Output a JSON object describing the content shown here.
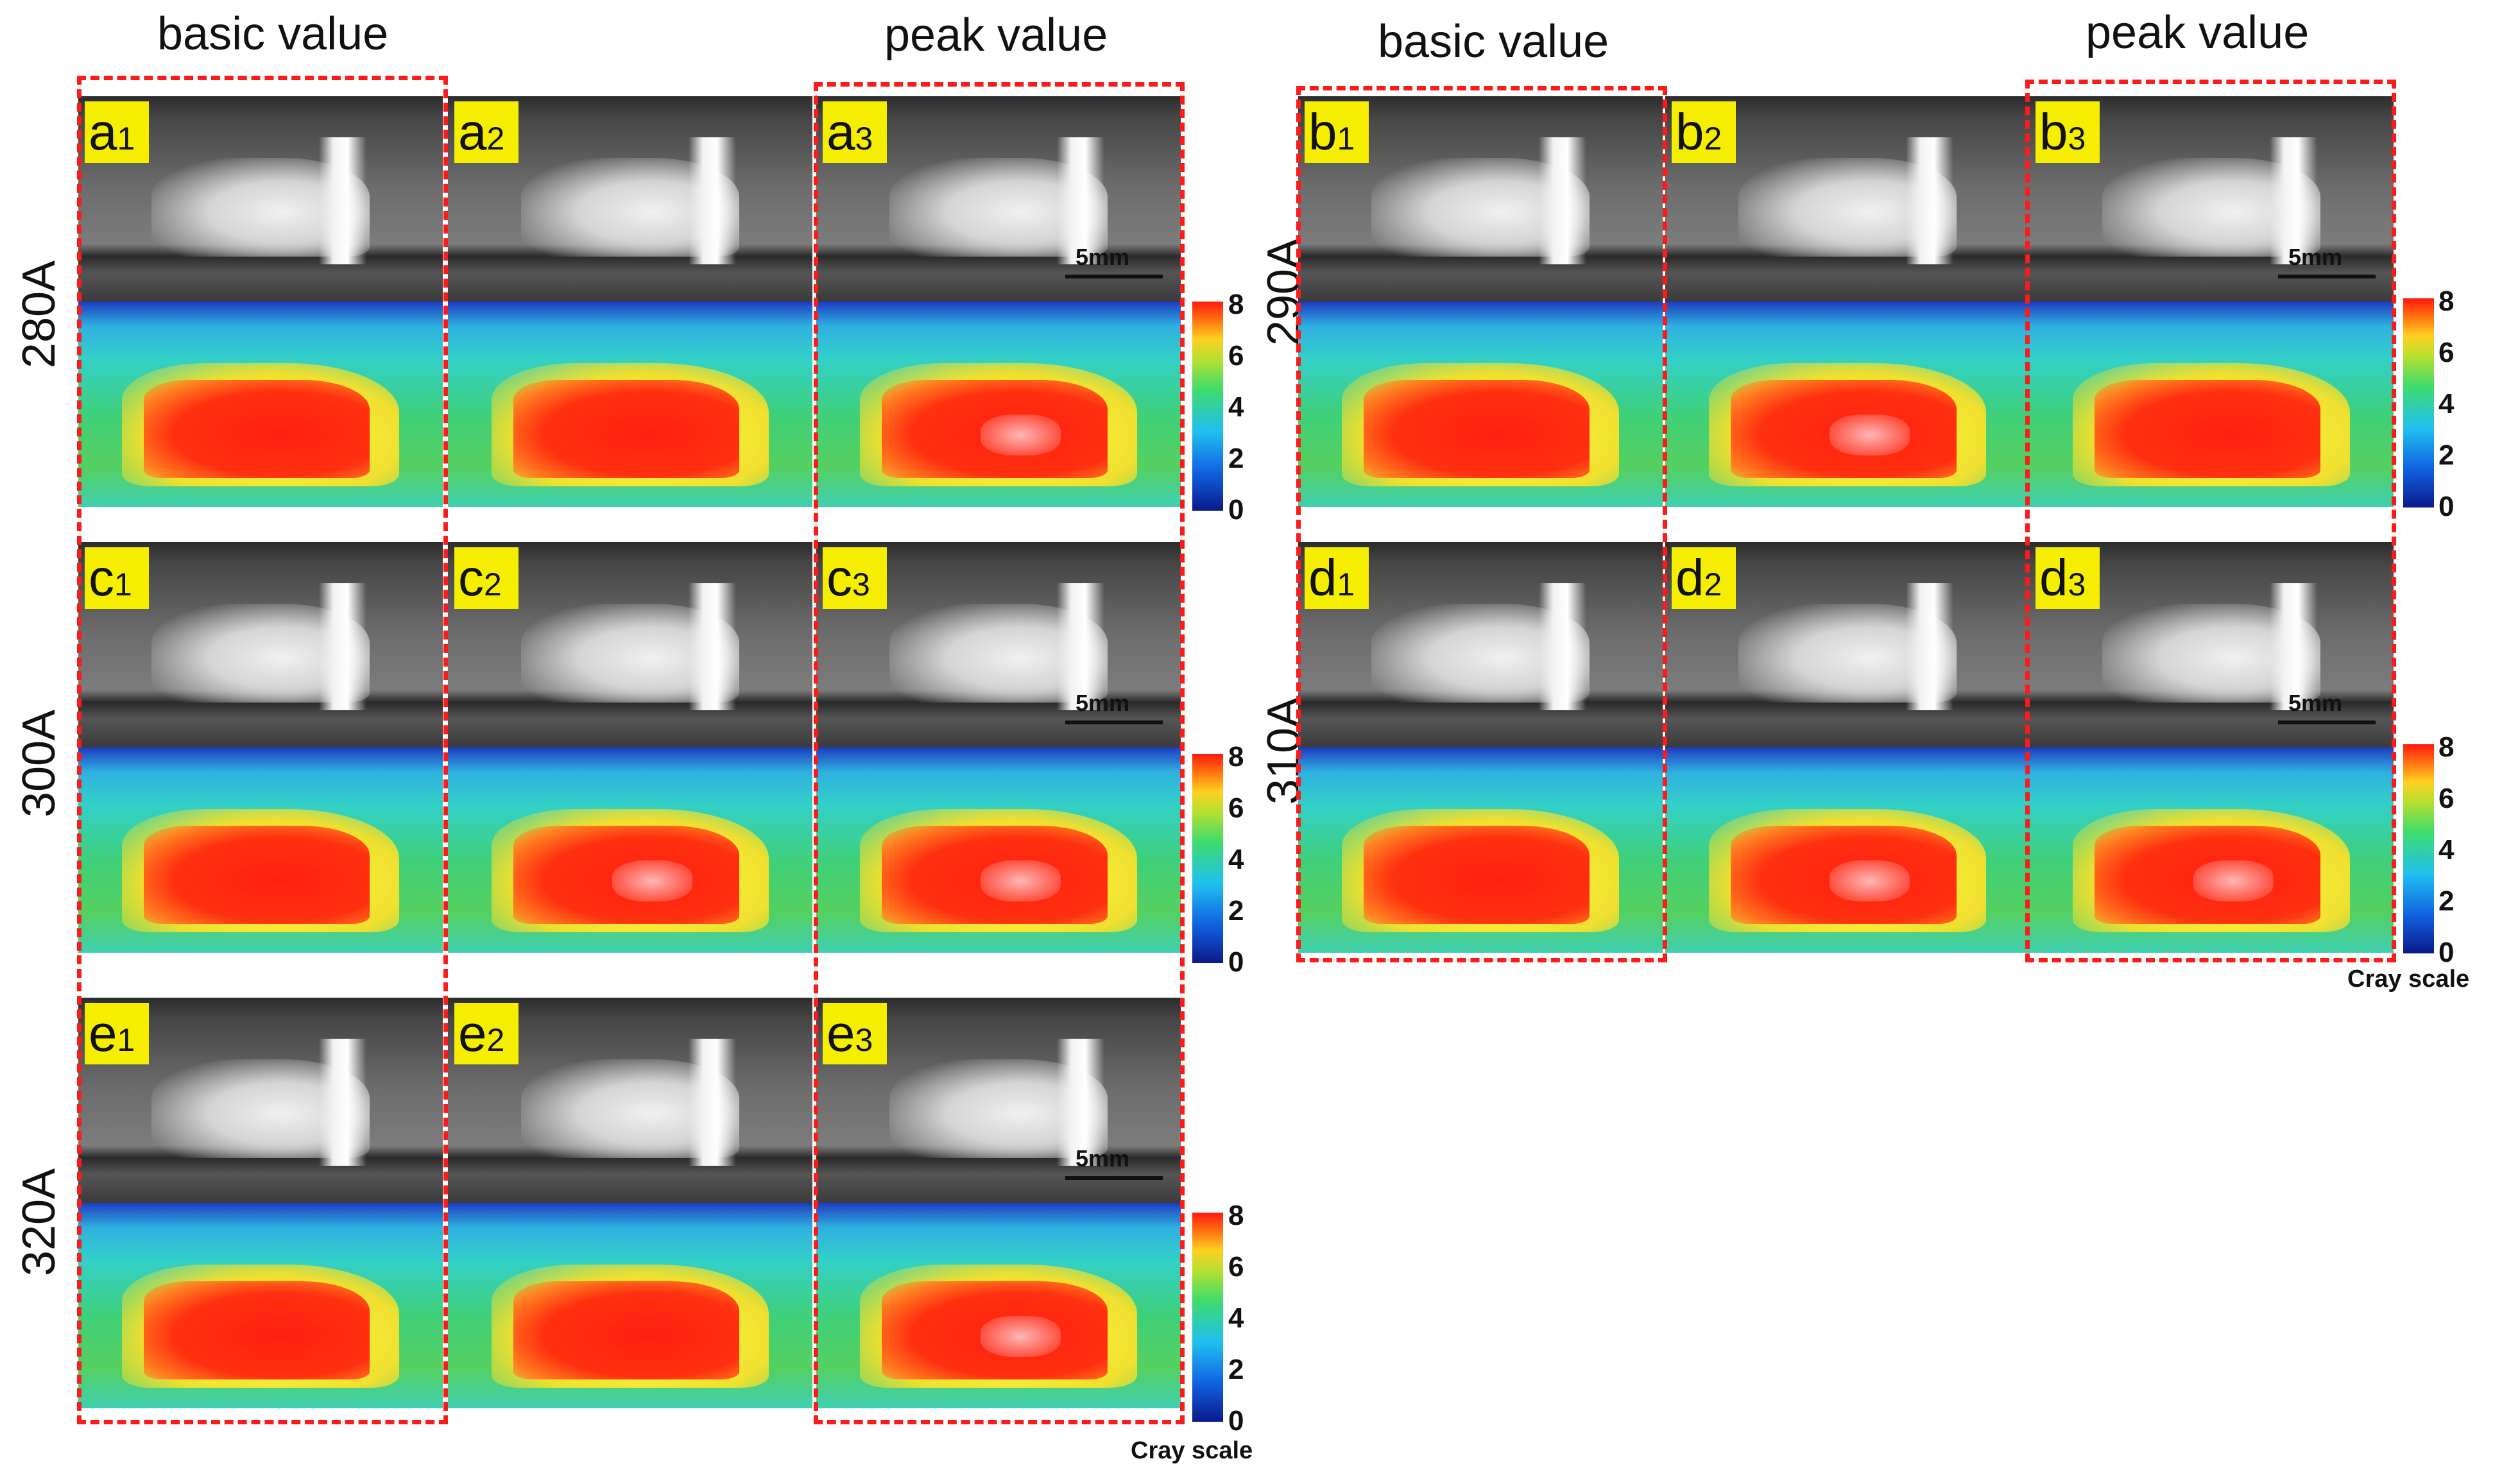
{
  "headers": {
    "left_basic": "basic value",
    "left_peak": "peak value",
    "right_basic": "basic value",
    "right_peak": "peak value"
  },
  "row_labels": [
    "280A",
    "290A",
    "300A",
    "310A",
    "320A"
  ],
  "panels": {
    "a": [
      "a",
      "a",
      "a"
    ],
    "b": [
      "b",
      "b",
      "b"
    ],
    "c": [
      "c",
      "c",
      "c"
    ],
    "d": [
      "d",
      "d",
      "d"
    ],
    "e": [
      "e",
      "e",
      "e"
    ],
    "subs": [
      "1",
      "2",
      "3"
    ]
  },
  "scale_bar": "5mm",
  "colorbar": {
    "ticks": [
      "8",
      "6",
      "4",
      "2",
      "0"
    ],
    "label": "Cray scale",
    "colors": [
      "#0a1a8a",
      "#1060e0",
      "#20c0f0",
      "#3fdc6c",
      "#ffd020",
      "#ff6a10",
      "#ff1a10"
    ]
  },
  "dash_color": "#ff1a1a",
  "tag_color": "#f5ee00"
}
